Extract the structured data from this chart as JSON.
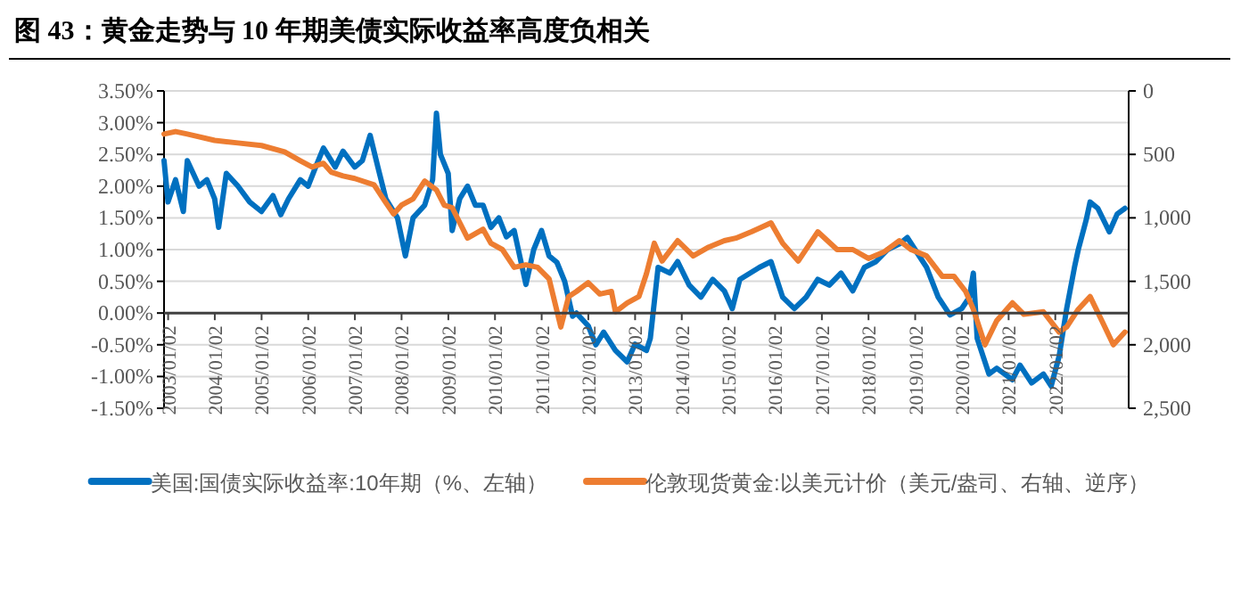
{
  "chart_data": {
    "type": "line",
    "title": "图 43：黄金走势与 10 年期美债实际收益率高度负相关",
    "series": [
      {
        "name": "美国:国债实际收益率:10年期（%、左轴）",
        "color": "#0070c0",
        "axis": "y",
        "x": [
          "2002-12",
          "2003-01",
          "2003-03",
          "2003-05",
          "2003-06",
          "2003-09",
          "2003-11",
          "2004-01",
          "2004-02",
          "2004-04",
          "2004-07",
          "2004-10",
          "2005-01",
          "2005-04",
          "2005-06",
          "2005-08",
          "2005-11",
          "2006-01",
          "2006-03",
          "2006-05",
          "2006-08",
          "2006-10",
          "2007-01",
          "2007-03",
          "2007-05",
          "2007-07",
          "2007-09",
          "2007-12",
          "2008-02",
          "2008-04",
          "2008-07",
          "2008-09",
          "2008-10",
          "2008-11",
          "2009-01",
          "2009-02",
          "2009-04",
          "2009-06",
          "2009-08",
          "2009-10",
          "2009-12",
          "2010-02",
          "2010-04",
          "2010-06",
          "2010-09",
          "2010-11",
          "2011-01",
          "2011-03",
          "2011-05",
          "2011-07",
          "2011-09",
          "2011-10",
          "2012-01",
          "2012-03",
          "2012-05",
          "2012-08",
          "2012-11",
          "2013-01",
          "2013-04",
          "2013-05",
          "2013-07",
          "2013-10",
          "2013-12",
          "2014-03",
          "2014-06",
          "2014-09",
          "2014-12",
          "2015-02",
          "2015-04",
          "2015-09",
          "2015-12",
          "2016-03",
          "2016-06",
          "2016-09",
          "2016-12",
          "2017-03",
          "2017-06",
          "2017-09",
          "2017-12",
          "2018-03",
          "2018-06",
          "2018-09",
          "2018-11",
          "2019-01",
          "2019-04",
          "2019-07",
          "2019-10",
          "2020-01",
          "2020-03",
          "2020-04",
          "2020-05",
          "2020-08",
          "2020-10",
          "2021-02",
          "2021-04",
          "2021-07",
          "2021-10",
          "2021-12",
          "2022-02",
          "2022-04",
          "2022-06",
          "2022-07",
          "2022-09",
          "2022-10",
          "2022-12",
          "2023-03",
          "2023-05",
          "2023-07"
        ],
        "values": [
          2.4,
          1.75,
          2.1,
          1.6,
          2.4,
          2.0,
          2.1,
          1.8,
          1.35,
          2.2,
          2.0,
          1.75,
          1.6,
          1.85,
          1.55,
          1.8,
          2.1,
          2.0,
          2.3,
          2.6,
          2.3,
          2.55,
          2.3,
          2.4,
          2.8,
          2.3,
          1.8,
          1.5,
          0.9,
          1.5,
          1.7,
          2.1,
          3.15,
          2.5,
          2.2,
          1.3,
          1.8,
          2.0,
          1.7,
          1.7,
          1.35,
          1.5,
          1.2,
          1.3,
          0.45,
          1.0,
          1.3,
          0.9,
          0.8,
          0.5,
          -0.05,
          0.0,
          -0.2,
          -0.5,
          -0.3,
          -0.59,
          -0.77,
          -0.49,
          -0.59,
          -0.4,
          0.72,
          0.63,
          0.81,
          0.44,
          0.25,
          0.53,
          0.35,
          0.07,
          0.53,
          0.72,
          0.81,
          0.25,
          0.07,
          0.25,
          0.53,
          0.44,
          0.63,
          0.35,
          0.72,
          0.81,
          1.0,
          1.09,
          1.19,
          1.0,
          0.72,
          0.25,
          -0.03,
          0.07,
          0.25,
          0.63,
          -0.4,
          -0.96,
          -0.87,
          -1.05,
          -0.82,
          -1.1,
          -0.96,
          -1.15,
          -0.68,
          0.07,
          0.72,
          1.0,
          1.47,
          1.75,
          1.65,
          1.28,
          1.56,
          1.65
        ]
      },
      {
        "name": "伦敦现货黄金:以美元计价（美元/盎司、右轴、逆序）",
        "color": "#ed7d31",
        "axis": "y2",
        "x": [
          "2002-12",
          "2003-03",
          "2003-06",
          "2004-01",
          "2004-07",
          "2005-01",
          "2005-07",
          "2005-11",
          "2006-02",
          "2006-05",
          "2006-07",
          "2006-10",
          "2007-01",
          "2007-06",
          "2007-09",
          "2007-11",
          "2008-01",
          "2008-04",
          "2008-07",
          "2008-10",
          "2008-12",
          "2009-02",
          "2009-06",
          "2009-10",
          "2009-12",
          "2010-03",
          "2010-06",
          "2010-09",
          "2010-12",
          "2011-03",
          "2011-06",
          "2011-08",
          "2011-10",
          "2012-01",
          "2012-04",
          "2012-07",
          "2012-08",
          "2012-11",
          "2013-02",
          "2013-04",
          "2013-06",
          "2013-08",
          "2013-12",
          "2014-04",
          "2014-08",
          "2014-12",
          "2015-03",
          "2015-07",
          "2015-12",
          "2016-03",
          "2016-07",
          "2016-12",
          "2017-05",
          "2017-09",
          "2018-01",
          "2018-05",
          "2018-09",
          "2018-12",
          "2019-04",
          "2019-08",
          "2019-11",
          "2020-02",
          "2020-04",
          "2020-07",
          "2020-10",
          "2021-02",
          "2021-05",
          "2021-10",
          "2022-02",
          "2022-04",
          "2022-07",
          "2022-10",
          "2023-01",
          "2023-04",
          "2023-07"
        ],
        "values": [
          340,
          320,
          340,
          390,
          410,
          430,
          480,
          550,
          600,
          570,
          640,
          670,
          690,
          740,
          880,
          970,
          900,
          850,
          710,
          780,
          900,
          920,
          1160,
          1090,
          1200,
          1250,
          1390,
          1370,
          1390,
          1480,
          1860,
          1620,
          1580,
          1510,
          1600,
          1580,
          1740,
          1670,
          1620,
          1440,
          1200,
          1340,
          1180,
          1300,
          1230,
          1180,
          1160,
          1110,
          1040,
          1200,
          1340,
          1110,
          1250,
          1250,
          1320,
          1270,
          1180,
          1250,
          1300,
          1460,
          1460,
          1580,
          1720,
          2000,
          1810,
          1670,
          1760,
          1740,
          1900,
          1860,
          1720,
          1620,
          1810,
          2000,
          1900
        ]
      }
    ],
    "xlim": [
      "2002-12-01",
      "2023-07-30"
    ],
    "xticks": [
      {
        "value": "2003-01-02",
        "label": "2003/01/02"
      },
      {
        "value": "2004-01-02",
        "label": "2004/01/02"
      },
      {
        "value": "2005-01-02",
        "label": "2005/01/02"
      },
      {
        "value": "2006-01-02",
        "label": "2006/01/02"
      },
      {
        "value": "2007-01-02",
        "label": "2007/01/02"
      },
      {
        "value": "2008-01-02",
        "label": "2008/01/02"
      },
      {
        "value": "2009-01-02",
        "label": "2009/01/02"
      },
      {
        "value": "2010-01-02",
        "label": "2010/01/02"
      },
      {
        "value": "2011-01-02",
        "label": "2011/01/02"
      },
      {
        "value": "2012-01-02",
        "label": "2012/01/02"
      },
      {
        "value": "2013-01-02",
        "label": "2013/01/02"
      },
      {
        "value": "2014-01-02",
        "label": "2014/01/02"
      },
      {
        "value": "2015-01-02",
        "label": "2015/01/02"
      },
      {
        "value": "2016-01-02",
        "label": "2016/01/02"
      },
      {
        "value": "2017-01-02",
        "label": "2017/01/02"
      },
      {
        "value": "2018-01-02",
        "label": "2018/01/02"
      },
      {
        "value": "2019-01-02",
        "label": "2019/01/02"
      },
      {
        "value": "2020-01-02",
        "label": "2020/01/02"
      },
      {
        "value": "2021-01-02",
        "label": "2021/01/02"
      },
      {
        "value": "2022-01-02",
        "label": "2022/01/02"
      }
    ],
    "ylim": [
      -1.5,
      3.5
    ],
    "yticks": [
      {
        "value": -1.5,
        "label": "-1.50%"
      },
      {
        "value": -1.0,
        "label": "-1.00%"
      },
      {
        "value": -0.5,
        "label": "-0.50%"
      },
      {
        "value": 0,
        "label": "0.00%"
      },
      {
        "value": 0.5,
        "label": "0.50%"
      },
      {
        "value": 1.0,
        "label": "1.00%"
      },
      {
        "value": 1.5,
        "label": "1.50%"
      },
      {
        "value": 2.0,
        "label": "2.00%"
      },
      {
        "value": 2.5,
        "label": "2.50%"
      },
      {
        "value": 3.0,
        "label": "3.00%"
      },
      {
        "value": 3.5,
        "label": "3.50%"
      }
    ],
    "y2lim": [
      2500,
      0
    ],
    "y2ticks": [
      0,
      500,
      {
        "value": 1000,
        "label": "1,000"
      },
      {
        "value": 1500,
        "label": "1,500"
      },
      {
        "value": 2000,
        "label": "2,000"
      },
      {
        "value": 2500,
        "label": "2,500"
      }
    ],
    "grid": "y",
    "legend": "bottom",
    "marker": "none",
    "line_style": "solid"
  }
}
